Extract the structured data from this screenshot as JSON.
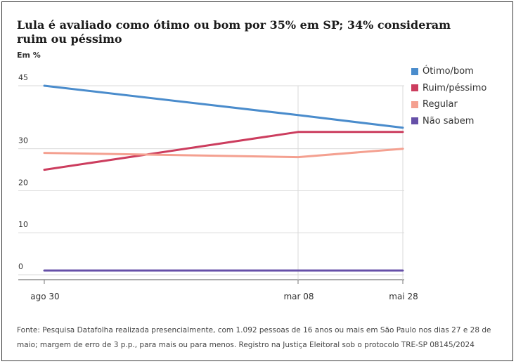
{
  "title": "Lula é avaliado como ótimo ou bom por 35% em SP; 34% consideram ruim ou péssimo",
  "unit_label": "Em %",
  "source": "Fonte: Pesquisa Datafolha realizada presencialmente, com 1.092 pessoas de 16 anos ou mais em São Paulo nos dias 27 e 28 de maio; margem de erro de 3 p.p., para mais ou para menos. Registro na Justiça Eleitoral sob o protocolo TRE-SP 08145/2024",
  "chart_data": {
    "type": "line",
    "title": "Lula é avaliado como ótimo ou bom por 35% em SP; 34% consideram ruim ou péssimo",
    "ylabel": "Em %",
    "x": [
      "2023-08-30",
      "2024-03-08",
      "2024-05-28"
    ],
    "x_tick_labels": [
      "ago 30",
      "mar 08",
      "mai 28"
    ],
    "y_ticks": [
      0,
      10,
      20,
      30,
      45
    ],
    "ylim": [
      0,
      45
    ],
    "grid": true,
    "legend_position": "top-right",
    "series": [
      {
        "name": "Ótimo/bom",
        "color": "#4a8ccc",
        "values": [
          45,
          38,
          35
        ]
      },
      {
        "name": "Ruim/péssimo",
        "color": "#cc3d5e",
        "values": [
          25,
          34,
          34
        ]
      },
      {
        "name": "Regular",
        "color": "#f4a090",
        "values": [
          29,
          28,
          30
        ]
      },
      {
        "name": "Não sabem",
        "color": "#6650a8",
        "values": [
          1,
          1,
          1
        ]
      }
    ]
  }
}
